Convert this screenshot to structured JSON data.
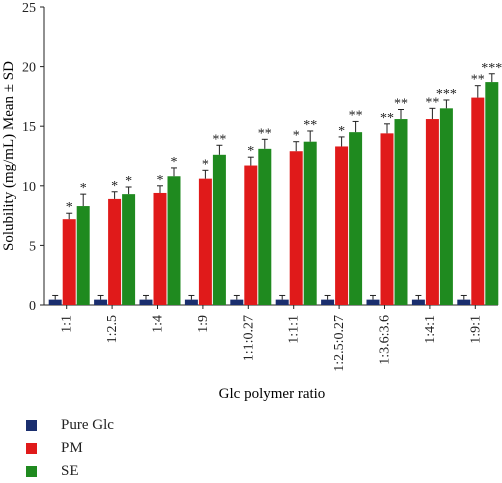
{
  "chart_data": {
    "type": "bar",
    "title": "",
    "xlabel": "Glc polymer ratio",
    "ylabel": "Solubility (mg/mL) Mean ± SD",
    "ylim": [
      0,
      25
    ],
    "yticks": [
      0,
      5,
      10,
      15,
      20,
      25
    ],
    "grid": false,
    "legend_position": "bottom-left",
    "categories": [
      "1:1",
      "1:2.5",
      "1:4",
      "1:9",
      "1:1:0.27",
      "1:1:1",
      "1:2.5:0.27",
      "1:3.6:3.6",
      "1:4:1",
      "1:9:1"
    ],
    "series": [
      {
        "name": "Pure Glc",
        "color": "#1a2e6e",
        "values": [
          0.45,
          0.45,
          0.45,
          0.45,
          0.45,
          0.45,
          0.45,
          0.45,
          0.45,
          0.45
        ],
        "errors": [
          0.35,
          0.35,
          0.35,
          0.35,
          0.35,
          0.35,
          0.35,
          0.35,
          0.35,
          0.35
        ],
        "annotations": [
          "",
          "",
          "",
          "",
          "",
          "",
          "",
          "",
          "",
          ""
        ]
      },
      {
        "name": "PM",
        "color": "#e01a1a",
        "values": [
          7.2,
          8.9,
          9.4,
          10.6,
          11.7,
          12.9,
          13.3,
          14.4,
          15.6,
          17.4
        ],
        "errors": [
          0.5,
          0.6,
          0.6,
          0.7,
          0.7,
          0.8,
          0.8,
          0.8,
          0.9,
          1.0
        ],
        "annotations": [
          "*",
          "*",
          "*",
          "*",
          "*",
          "*",
          "*",
          "**",
          "**",
          "**"
        ]
      },
      {
        "name": "SE",
        "color": "#1f8a1f",
        "values": [
          8.3,
          9.3,
          10.8,
          12.6,
          13.1,
          13.7,
          14.5,
          15.6,
          16.5,
          18.7
        ],
        "errors": [
          1.0,
          0.6,
          0.7,
          0.8,
          0.8,
          0.9,
          0.9,
          0.8,
          0.7,
          0.7
        ],
        "annotations": [
          "*",
          "*",
          "*",
          "**",
          "**",
          "**",
          "**",
          "**",
          "***",
          "***"
        ]
      }
    ]
  }
}
